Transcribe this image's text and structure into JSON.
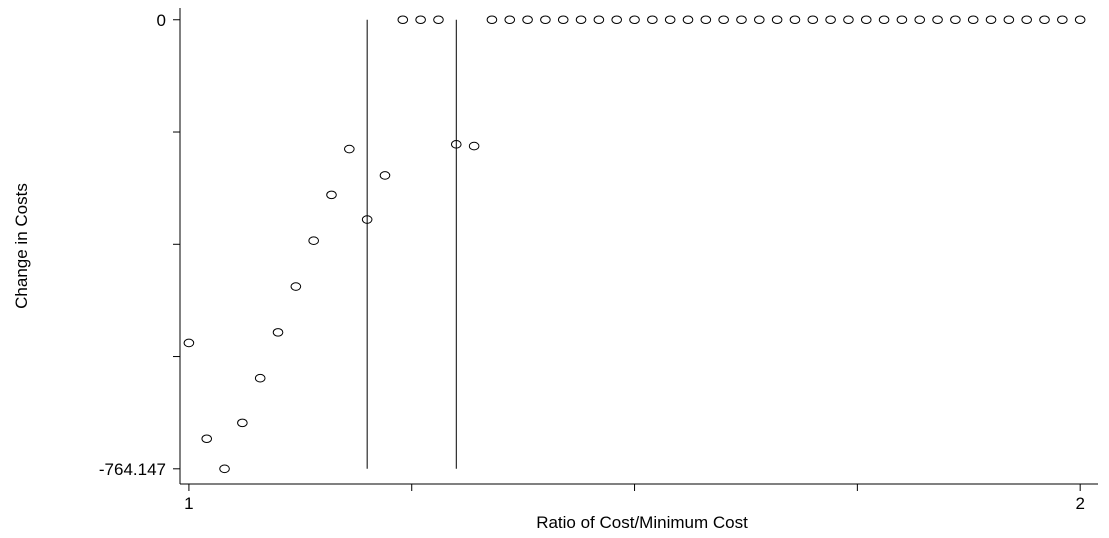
{
  "chart_data": {
    "type": "scatter",
    "title": "",
    "xlabel": "Ratio of Cost/Minimum Cost",
    "ylabel": "Change in Costs",
    "xlim": [
      0.99,
      2.02
    ],
    "ylim": [
      -790,
      20
    ],
    "x_ticks": [
      1,
      1.25,
      1.5,
      1.75,
      2
    ],
    "x_tick_labels": [
      {
        "value": 1,
        "label": "1"
      },
      {
        "value": 2,
        "label": "2"
      }
    ],
    "y_ticks": [
      0,
      -191.037,
      -382.074,
      -573.11,
      -764.147
    ],
    "y_tick_labels": [
      {
        "value": 0,
        "label": "0"
      },
      {
        "value": -764.147,
        "label": "-764.147"
      }
    ],
    "vertical_lines": [
      1.2,
      1.3
    ],
    "grid": false,
    "legend": "none",
    "points": [
      {
        "x": 1.0,
        "y": -550
      },
      {
        "x": 1.02,
        "y": -713
      },
      {
        "x": 1.04,
        "y": -764.147
      },
      {
        "x": 1.06,
        "y": -686
      },
      {
        "x": 1.08,
        "y": -610
      },
      {
        "x": 1.1,
        "y": -532
      },
      {
        "x": 1.12,
        "y": -454
      },
      {
        "x": 1.14,
        "y": -376
      },
      {
        "x": 1.16,
        "y": -298
      },
      {
        "x": 1.18,
        "y": -220
      },
      {
        "x": 1.2,
        "y": -340
      },
      {
        "x": 1.22,
        "y": -265
      },
      {
        "x": 1.24,
        "y": 0
      },
      {
        "x": 1.26,
        "y": 0
      },
      {
        "x": 1.28,
        "y": 0
      },
      {
        "x": 1.3,
        "y": -212
      },
      {
        "x": 1.32,
        "y": -215
      },
      {
        "x": 1.34,
        "y": 0
      },
      {
        "x": 1.36,
        "y": 0
      },
      {
        "x": 1.38,
        "y": 0
      },
      {
        "x": 1.4,
        "y": 0
      },
      {
        "x": 1.42,
        "y": 0
      },
      {
        "x": 1.44,
        "y": 0
      },
      {
        "x": 1.46,
        "y": 0
      },
      {
        "x": 1.48,
        "y": 0
      },
      {
        "x": 1.5,
        "y": 0
      },
      {
        "x": 1.52,
        "y": 0
      },
      {
        "x": 1.54,
        "y": 0
      },
      {
        "x": 1.56,
        "y": 0
      },
      {
        "x": 1.58,
        "y": 0
      },
      {
        "x": 1.6,
        "y": 0
      },
      {
        "x": 1.62,
        "y": 0
      },
      {
        "x": 1.64,
        "y": 0
      },
      {
        "x": 1.66,
        "y": 0
      },
      {
        "x": 1.68,
        "y": 0
      },
      {
        "x": 1.7,
        "y": 0
      },
      {
        "x": 1.72,
        "y": 0
      },
      {
        "x": 1.74,
        "y": 0
      },
      {
        "x": 1.76,
        "y": 0
      },
      {
        "x": 1.78,
        "y": 0
      },
      {
        "x": 1.8,
        "y": 0
      },
      {
        "x": 1.82,
        "y": 0
      },
      {
        "x": 1.84,
        "y": 0
      },
      {
        "x": 1.86,
        "y": 0
      },
      {
        "x": 1.88,
        "y": 0
      },
      {
        "x": 1.9,
        "y": 0
      },
      {
        "x": 1.92,
        "y": 0
      },
      {
        "x": 1.94,
        "y": 0
      },
      {
        "x": 1.96,
        "y": 0
      },
      {
        "x": 1.98,
        "y": 0
      },
      {
        "x": 2.0,
        "y": 0
      }
    ]
  }
}
